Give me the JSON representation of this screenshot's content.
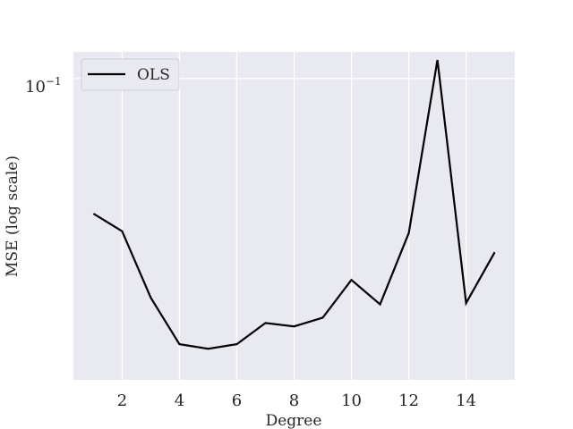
{
  "chart_data": {
    "type": "line",
    "xlabel": "Degree",
    "ylabel": "MSE (log scale)",
    "yscale": "log",
    "grid": true,
    "legend_position": "top-left",
    "background_color": "#e9e9f1",
    "grid_color": "#ffffff",
    "xlim": [
      0.3,
      15.7
    ],
    "ylim": [
      0.0238,
      0.1135
    ],
    "xticks": [
      2,
      4,
      6,
      8,
      10,
      12,
      14
    ],
    "xtick_labels": [
      "2",
      "4",
      "6",
      "8",
      "10",
      "12",
      "14"
    ],
    "ytick_value": 0.1,
    "ytick_label_base": "10",
    "ytick_label_exp": "−1",
    "series": [
      {
        "name": "OLS",
        "color": "#000000",
        "x": [
          1,
          2,
          3,
          4,
          5,
          6,
          7,
          8,
          9,
          10,
          11,
          12,
          13,
          14,
          15
        ],
        "y": [
          0.0525,
          0.0483,
          0.0352,
          0.0282,
          0.0276,
          0.0282,
          0.0312,
          0.0307,
          0.032,
          0.0383,
          0.0341,
          0.0479,
          0.1092,
          0.0343,
          0.0437
        ]
      }
    ]
  }
}
